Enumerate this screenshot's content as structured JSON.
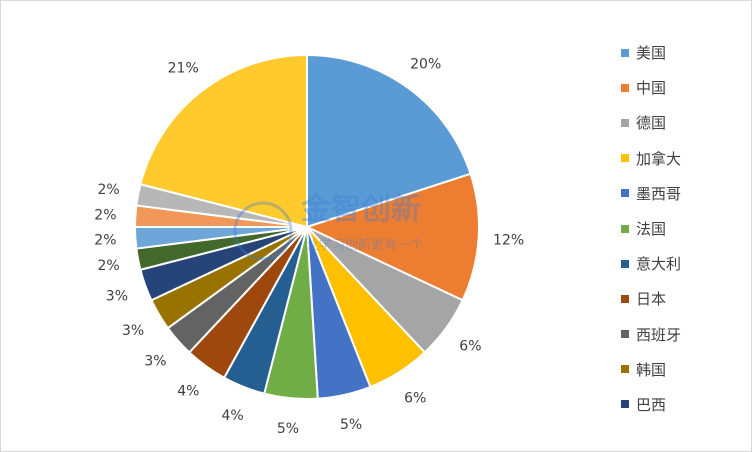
{
  "chart_data": {
    "type": "pie",
    "title": "",
    "start_angle_deg": 0,
    "direction": "clockwise",
    "slices": [
      {
        "label": "美国",
        "value": 20,
        "display": "20%",
        "color": "#5b9bd5"
      },
      {
        "label": "中国",
        "value": 12,
        "display": "12%",
        "color": "#ed7d31"
      },
      {
        "label": "德国",
        "value": 6,
        "display": "6%",
        "color": "#a5a5a5"
      },
      {
        "label": "加拿大",
        "value": 6,
        "display": "6%",
        "color": "#ffc000"
      },
      {
        "label": "墨西哥",
        "value": 5,
        "display": "5%",
        "color": "#4472c4"
      },
      {
        "label": "法国",
        "value": 5,
        "display": "5%",
        "color": "#70ad47"
      },
      {
        "label": "意大利",
        "value": 4,
        "display": "4%",
        "color": "#255e91"
      },
      {
        "label": "日本",
        "value": 4,
        "display": "4%",
        "color": "#9e480e"
      },
      {
        "label": "西班牙",
        "value": 3,
        "display": "3%",
        "color": "#636363"
      },
      {
        "label": "韩国",
        "value": 3,
        "display": "3%",
        "color": "#997300"
      },
      {
        "label": "巴西",
        "value": 3,
        "display": "3%",
        "color": "#264478"
      },
      {
        "label": "",
        "value": 2,
        "display": "2%",
        "color": "#43682b"
      },
      {
        "label": "",
        "value": 2,
        "display": "2%",
        "color": "#6ea6da"
      },
      {
        "label": "",
        "value": 2,
        "display": "2%",
        "color": "#f1975a"
      },
      {
        "label": "",
        "value": 2,
        "display": "2%",
        "color": "#b7b7b7"
      },
      {
        "label": "",
        "value": 21,
        "display": "21%",
        "color": "#ffca2d"
      }
    ],
    "legend": {
      "position": "right",
      "entries": [
        {
          "label": "美国",
          "color": "#5b9bd5"
        },
        {
          "label": "中国",
          "color": "#ed7d31"
        },
        {
          "label": "德国",
          "color": "#a5a5a5"
        },
        {
          "label": "加拿大",
          "color": "#ffc000"
        },
        {
          "label": "墨西哥",
          "color": "#4472c4"
        },
        {
          "label": "法国",
          "color": "#70ad47"
        },
        {
          "label": "意大利",
          "color": "#255e91"
        },
        {
          "label": "日本",
          "color": "#9e480e"
        },
        {
          "label": "西班牙",
          "color": "#636363"
        },
        {
          "label": "韩国",
          "color": "#997300"
        },
        {
          "label": "巴西",
          "color": "#264478"
        }
      ]
    }
  },
  "watermark": {
    "title": "金智创新",
    "subtitle": "让学习创新更有一个"
  }
}
